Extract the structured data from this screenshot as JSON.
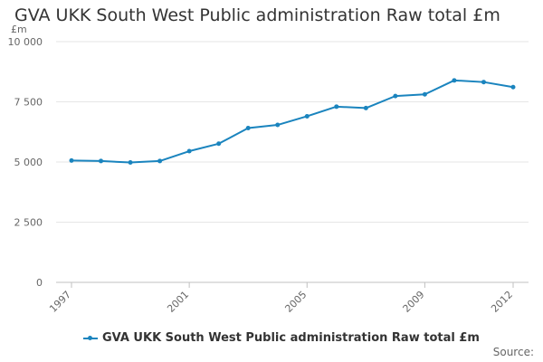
{
  "colors": {
    "series": "#1a84be",
    "grid": "#e6e6e6",
    "axis": "#c0c0c0",
    "text": "#666666"
  },
  "source_label": "Source:",
  "chart_data": {
    "type": "line",
    "title": "GVA UKK South West Public administration Raw total £m",
    "ylabel": "£m",
    "xlabel": "",
    "ylim": [
      0,
      10000
    ],
    "yticks": [
      0,
      2500,
      5000,
      7500,
      10000
    ],
    "ytick_labels": [
      "0",
      "2 500",
      "5 000",
      "7 500",
      "10 000"
    ],
    "xticks": [
      1997,
      2001,
      2005,
      2009,
      2012
    ],
    "x": [
      1997,
      1998,
      1999,
      2000,
      2001,
      2002,
      2003,
      2004,
      2005,
      2006,
      2007,
      2008,
      2009,
      2010,
      2011,
      2012
    ],
    "series": [
      {
        "name": "GVA UKK South West Public administration Raw total £m",
        "values": [
          5060,
          5040,
          4980,
          5040,
          5450,
          5760,
          6410,
          6540,
          6900,
          7300,
          7240,
          7740,
          7810,
          8390,
          8320,
          8110
        ]
      }
    ],
    "legend": "bottom",
    "grid": true
  }
}
